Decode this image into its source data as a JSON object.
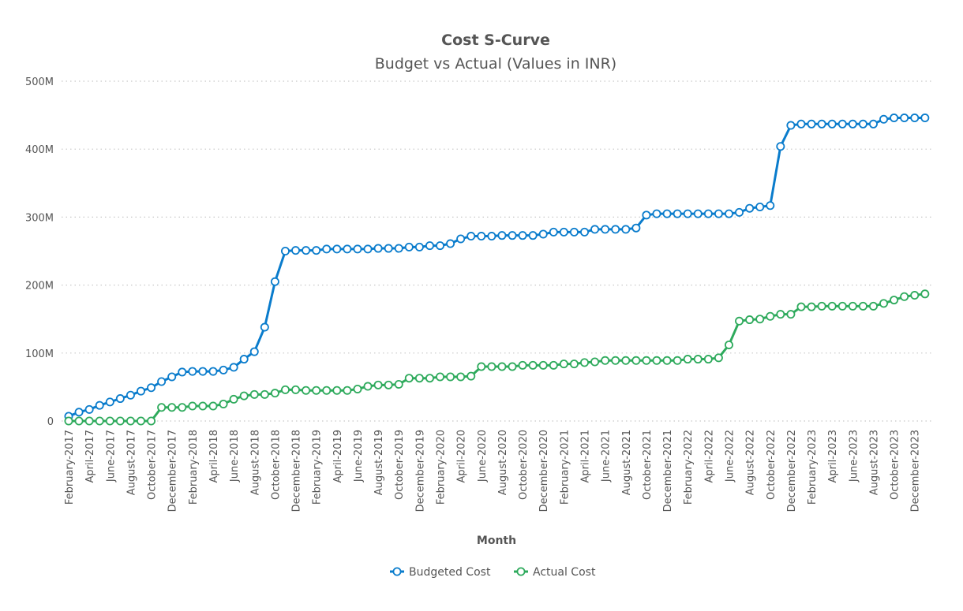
{
  "chart_data": {
    "type": "line",
    "title": "Cost S-Curve",
    "subtitle": "Budget vs Actual (Values in INR)",
    "xlabel": "Month",
    "ylabel": "",
    "ylim": [
      0,
      500000000
    ],
    "y_ticks": [
      0,
      100000000,
      200000000,
      300000000,
      400000000,
      500000000
    ],
    "y_tick_labels": [
      "0",
      "100M",
      "200M",
      "300M",
      "400M",
      "500M"
    ],
    "grid": "horizontal dotted",
    "legend_position": "bottom-center",
    "categories": [
      "February-2017",
      "March-2017",
      "April-2017",
      "May-2017",
      "June-2017",
      "July-2017",
      "August-2017",
      "September-2017",
      "October-2017",
      "November-2017",
      "December-2017",
      "January-2018",
      "February-2018",
      "March-2018",
      "April-2018",
      "May-2018",
      "June-2018",
      "July-2018",
      "August-2018",
      "September-2018",
      "October-2018",
      "November-2018",
      "December-2018",
      "January-2019",
      "February-2019",
      "March-2019",
      "April-2019",
      "May-2019",
      "June-2019",
      "July-2019",
      "August-2019",
      "September-2019",
      "October-2019",
      "November-2019",
      "December-2019",
      "January-2020",
      "February-2020",
      "March-2020",
      "April-2020",
      "May-2020",
      "June-2020",
      "July-2020",
      "August-2020",
      "September-2020",
      "October-2020",
      "November-2020",
      "December-2020",
      "January-2021",
      "February-2021",
      "March-2021",
      "April-2021",
      "May-2021",
      "June-2021",
      "July-2021",
      "August-2021",
      "September-2021",
      "October-2021",
      "November-2021",
      "December-2021",
      "January-2022",
      "February-2022",
      "March-2022",
      "April-2022",
      "May-2022",
      "June-2022",
      "July-2022",
      "August-2022",
      "September-2022",
      "October-2022",
      "November-2022",
      "December-2022",
      "January-2023",
      "February-2023",
      "March-2023",
      "April-2023",
      "May-2023",
      "June-2023",
      "July-2023",
      "August-2023",
      "September-2023",
      "October-2023",
      "November-2023",
      "December-2023",
      "January-2024"
    ],
    "x_tick_labels": [
      "February-2017",
      "April-2017",
      "June-2017",
      "August-2017",
      "October-2017",
      "December-2017",
      "February-2018",
      "April-2018",
      "June-2018",
      "August-2018",
      "October-2018",
      "December-2018",
      "February-2019",
      "April-2019",
      "June-2019",
      "August-2019",
      "October-2019",
      "December-2019",
      "February-2020",
      "April-2020",
      "June-2020",
      "August-2020",
      "October-2020",
      "December-2020",
      "February-2021",
      "April-2021",
      "June-2021",
      "August-2021",
      "October-2021",
      "December-2021",
      "February-2022",
      "April-2022",
      "June-2022",
      "August-2022",
      "October-2022",
      "December-2022",
      "February-2023",
      "April-2023",
      "June-2023",
      "August-2023",
      "October-2023",
      "December-2023"
    ],
    "series": [
      {
        "name": "Budgeted Cost",
        "color": "#0a7ccc",
        "marker": "open-circle",
        "values_millions": [
          7,
          13,
          17,
          23,
          28,
          33,
          38,
          44,
          49,
          58,
          65,
          72,
          73,
          73,
          73,
          75,
          79,
          91,
          102,
          138,
          205,
          250,
          251,
          251,
          251,
          253,
          253,
          253,
          253,
          253,
          254,
          254,
          254,
          256,
          256,
          258,
          258,
          261,
          268,
          272,
          272,
          272,
          273,
          273,
          273,
          273,
          275,
          278,
          278,
          278,
          278,
          282,
          282,
          282,
          282,
          284,
          303,
          305,
          305,
          305,
          305,
          305,
          305,
          305,
          305,
          307,
          313,
          315,
          317,
          404,
          435,
          437,
          437,
          437,
          437,
          437,
          437,
          437,
          437,
          444,
          446,
          446,
          446,
          446
        ]
      },
      {
        "name": "Actual Cost",
        "color": "#2eaa5c",
        "marker": "open-circle",
        "values_millions": [
          0,
          0,
          0,
          0,
          0,
          0,
          0,
          0,
          0,
          20,
          20,
          20,
          22,
          22,
          22,
          25,
          32,
          37,
          39,
          39,
          41,
          46,
          46,
          45,
          45,
          45,
          45,
          45,
          47,
          51,
          53,
          53,
          54,
          63,
          63,
          63,
          65,
          65,
          65,
          66,
          80,
          80,
          80,
          80,
          82,
          82,
          82,
          82,
          84,
          84,
          86,
          87,
          89,
          89,
          89,
          89,
          89,
          89,
          89,
          89,
          91,
          91,
          91,
          93,
          112,
          147,
          149,
          150,
          154,
          157,
          157,
          168,
          168,
          169,
          169,
          169,
          169,
          169,
          169,
          173,
          178,
          183,
          185,
          187
        ]
      }
    ]
  }
}
